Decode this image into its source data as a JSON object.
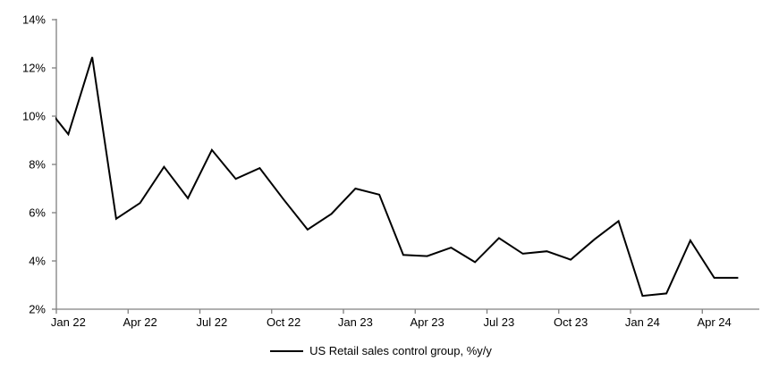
{
  "chart_data": {
    "type": "line",
    "title": "",
    "xlabel": "",
    "ylabel": "",
    "ylim": [
      2,
      14
    ],
    "y_tick_step_pct": 2,
    "y_tick_labels": [
      "2%",
      "4%",
      "6%",
      "8%",
      "10%",
      "12%",
      "14%"
    ],
    "x_tick_labels": [
      "Jan 22",
      "Apr 22",
      "Jul 22",
      "Oct 22",
      "Jan 23",
      "Apr 23",
      "Jul 23",
      "Oct 23",
      "Jan 24",
      "Apr 24"
    ],
    "grid": false,
    "axis_color": "#808080",
    "text_color": "#000000",
    "legend_position": "bottom-center",
    "series": [
      {
        "name": "US Retail sales control group, %y/y",
        "color": "#000000",
        "x": [
          "Dec 21",
          "Jan 22",
          "Feb 22",
          "Mar 22",
          "Apr 22",
          "May 22",
          "Jun 22",
          "Jul 22",
          "Aug 22",
          "Sep 22",
          "Oct 22",
          "Nov 22",
          "Dec 22",
          "Jan 23",
          "Feb 23",
          "Mar 23",
          "Apr 23",
          "May 23",
          "Jun 23",
          "Jul 23",
          "Aug 23",
          "Sep 23",
          "Oct 23",
          "Nov 23",
          "Dec 23",
          "Jan 24",
          "Feb 24",
          "Mar 24",
          "Apr 24",
          "May 24"
        ],
        "values": [
          10.5,
          9.25,
          12.45,
          5.75,
          6.4,
          7.9,
          6.6,
          8.6,
          7.4,
          7.85,
          6.55,
          5.3,
          5.95,
          7.0,
          6.75,
          4.25,
          4.2,
          4.55,
          3.95,
          4.95,
          4.3,
          4.4,
          4.05,
          4.9,
          5.65,
          2.55,
          2.65,
          4.85,
          3.3,
          3.3
        ]
      }
    ]
  }
}
